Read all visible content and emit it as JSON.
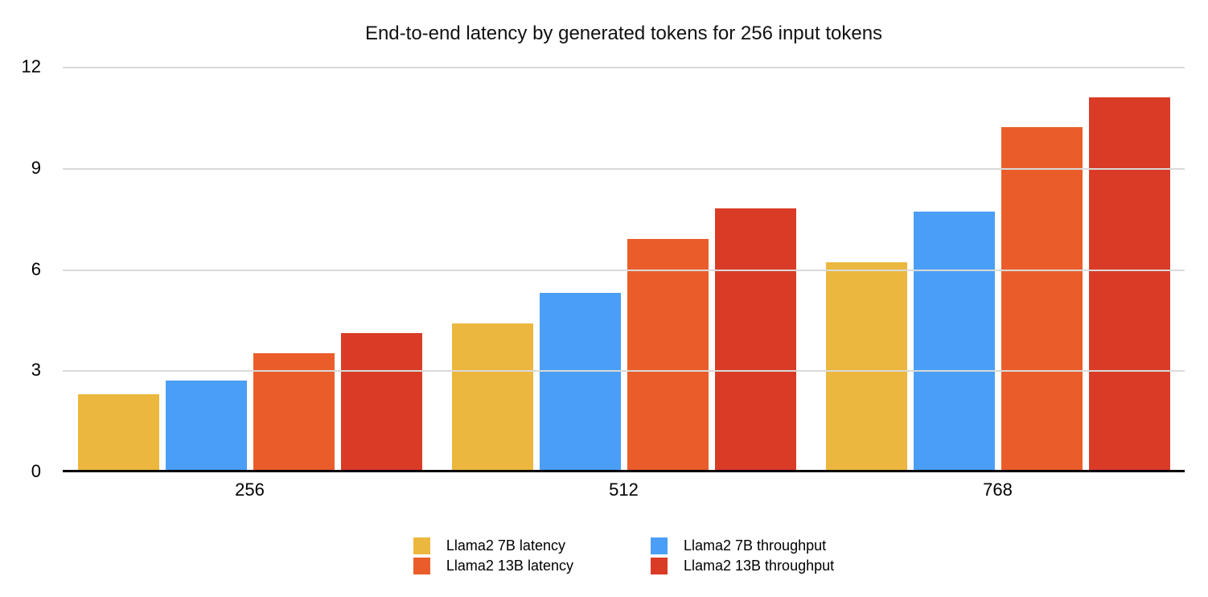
{
  "page": {
    "background": "#ffffff"
  },
  "chart_data": {
    "type": "bar",
    "title": "End-to-end latency by generated tokens for 256 input tokens",
    "categories": [
      "256",
      "512",
      "768"
    ],
    "series": [
      {
        "name": "Llama2 7B latency",
        "color": "#ECB73E",
        "values": [
          2.3,
          4.4,
          6.2
        ]
      },
      {
        "name": "Llama2 7B throughput",
        "color": "#4A9EF5",
        "values": [
          2.7,
          5.3,
          7.7
        ]
      },
      {
        "name": "Llama2 13B latency",
        "color": "#EA5D2B",
        "values": [
          3.5,
          6.9,
          10.2
        ]
      },
      {
        "name": "Llama2 13B throughput",
        "color": "#DA3B27",
        "values": [
          4.1,
          7.8,
          11.1
        ]
      }
    ],
    "xlabel": "",
    "ylabel": "",
    "ylim": [
      0,
      12
    ],
    "yticks": [
      0,
      3,
      6,
      9,
      12
    ],
    "grid": true,
    "legend_position": "bottom",
    "legend_columns": [
      [
        0,
        2
      ],
      [
        1,
        3
      ]
    ],
    "colors": {
      "gridline": "#d9d9d9",
      "axis_line": "#000000",
      "text": "#000000"
    }
  }
}
